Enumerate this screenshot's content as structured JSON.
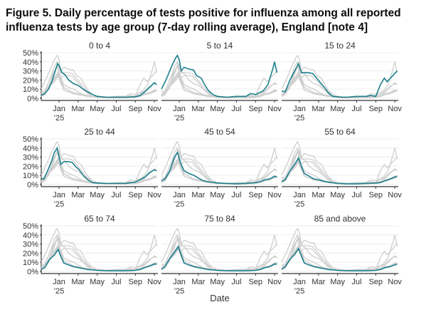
{
  "chart_data": {
    "type": "line",
    "title": "Figure 5. Daily percentage of tests positive for influenza among all reported influenza tests by age group (7-day rolling average), England [note 4]",
    "xlabel": "Date",
    "ylabel": "",
    "x_unit": "months since 1 Nov 2024",
    "xlim": [
      0.13,
      12.37
    ],
    "ylim": [
      -2.5,
      50
    ],
    "y_ticks": [
      0,
      10,
      20,
      30,
      40,
      50
    ],
    "y_tick_labels": [
      "0%",
      "10%",
      "20%",
      "30%",
      "40%",
      "50%"
    ],
    "x_ticks": [
      2,
      4,
      6,
      8,
      10,
      12
    ],
    "x_tick_labels": [
      "Jan",
      "Mar",
      "May",
      "Jul",
      "Sep",
      "Nov"
    ],
    "x_year_label": "'25",
    "grid": true,
    "colors": {
      "highlight": "#1b7f8c",
      "other": "#cfcfcf",
      "grid": "#ececec"
    },
    "series": [
      {
        "name": "0 to 4",
        "points": [
          [
            0.13,
            3
          ],
          [
            0.5,
            5
          ],
          [
            0.9,
            10
          ],
          [
            1.3,
            20
          ],
          [
            1.6,
            30
          ],
          [
            1.85,
            38
          ],
          [
            2.0,
            36
          ],
          [
            2.3,
            28
          ],
          [
            2.6,
            26
          ],
          [
            3.0,
            20
          ],
          [
            3.5,
            16
          ],
          [
            4.0,
            14
          ],
          [
            4.5,
            10
          ],
          [
            5.0,
            7
          ],
          [
            5.5,
            4
          ],
          [
            6.0,
            2
          ],
          [
            7,
            1
          ],
          [
            8,
            1
          ],
          [
            9,
            1
          ],
          [
            10,
            1.5
          ],
          [
            10.5,
            3
          ],
          [
            11,
            7
          ],
          [
            11.5,
            12
          ],
          [
            12.0,
            17
          ],
          [
            12.25,
            15
          ]
        ]
      },
      {
        "name": "5 to 14",
        "points": [
          [
            0.13,
            10
          ],
          [
            0.6,
            20
          ],
          [
            1.2,
            35
          ],
          [
            1.6,
            44
          ],
          [
            1.8,
            47
          ],
          [
            2.0,
            42
          ],
          [
            2.2,
            30
          ],
          [
            2.5,
            34
          ],
          [
            3.0,
            32
          ],
          [
            3.5,
            31
          ],
          [
            3.8,
            25
          ],
          [
            4.3,
            22
          ],
          [
            4.6,
            16
          ],
          [
            5.0,
            9
          ],
          [
            5.5,
            4
          ],
          [
            6,
            2
          ],
          [
            7,
            1
          ],
          [
            8,
            2
          ],
          [
            9,
            2
          ],
          [
            9.5,
            5
          ],
          [
            10,
            4
          ],
          [
            10.8,
            8
          ],
          [
            11.3,
            15
          ],
          [
            11.8,
            32
          ],
          [
            12.0,
            40
          ],
          [
            12.25,
            28
          ]
        ]
      },
      {
        "name": "15 to 24",
        "points": [
          [
            0.13,
            8
          ],
          [
            0.5,
            7
          ],
          [
            1.0,
            20
          ],
          [
            1.5,
            30
          ],
          [
            1.9,
            38
          ],
          [
            2.2,
            28
          ],
          [
            2.6,
            28
          ],
          [
            3.0,
            28
          ],
          [
            3.4,
            27
          ],
          [
            3.8,
            22
          ],
          [
            4.2,
            17
          ],
          [
            4.6,
            12
          ],
          [
            5.1,
            5
          ],
          [
            5.5,
            2
          ],
          [
            6.5,
            1
          ],
          [
            7,
            1
          ],
          [
            8,
            2
          ],
          [
            9,
            2
          ],
          [
            9.5,
            3
          ],
          [
            10,
            2
          ],
          [
            10.5,
            15
          ],
          [
            10.9,
            22
          ],
          [
            11.2,
            18
          ],
          [
            11.8,
            25
          ],
          [
            12.25,
            30
          ]
        ]
      },
      {
        "name": "25 to 44",
        "points": [
          [
            0.13,
            6
          ],
          [
            0.4,
            6
          ],
          [
            0.8,
            15
          ],
          [
            1.2,
            25
          ],
          [
            1.5,
            35
          ],
          [
            1.8,
            40
          ],
          [
            2.0,
            30
          ],
          [
            2.2,
            22
          ],
          [
            2.5,
            25
          ],
          [
            3.0,
            25
          ],
          [
            3.4,
            24
          ],
          [
            3.7,
            20
          ],
          [
            4.1,
            16
          ],
          [
            4.6,
            9
          ],
          [
            5.0,
            5
          ],
          [
            5.5,
            2
          ],
          [
            6,
            1.5
          ],
          [
            7,
            1
          ],
          [
            8,
            1
          ],
          [
            9,
            1
          ],
          [
            10,
            2.5
          ],
          [
            10.5,
            5
          ],
          [
            11,
            8
          ],
          [
            11.5,
            13
          ],
          [
            12,
            16
          ],
          [
            12.25,
            15
          ]
        ]
      },
      {
        "name": "45 to 54",
        "points": [
          [
            0.13,
            4
          ],
          [
            0.5,
            6
          ],
          [
            1.0,
            15
          ],
          [
            1.5,
            30
          ],
          [
            1.8,
            35
          ],
          [
            2.2,
            22
          ],
          [
            2.5,
            15
          ],
          [
            3.0,
            12
          ],
          [
            3.5,
            10
          ],
          [
            4.0,
            7
          ],
          [
            4.5,
            4
          ],
          [
            5.0,
            3
          ],
          [
            6,
            1.5
          ],
          [
            7,
            1
          ],
          [
            8,
            0.5
          ],
          [
            9,
            1
          ],
          [
            10,
            2
          ],
          [
            10.5,
            3
          ],
          [
            11,
            5
          ],
          [
            11.5,
            6
          ],
          [
            12,
            9
          ],
          [
            12.25,
            8
          ]
        ]
      },
      {
        "name": "55 to 64",
        "points": [
          [
            0.13,
            3
          ],
          [
            0.5,
            5
          ],
          [
            1.0,
            15
          ],
          [
            1.5,
            22
          ],
          [
            1.9,
            29
          ],
          [
            2.2,
            20
          ],
          [
            2.5,
            12
          ],
          [
            3.0,
            9
          ],
          [
            3.5,
            6
          ],
          [
            4.0,
            5
          ],
          [
            4.5,
            3.5
          ],
          [
            5.0,
            2.5
          ],
          [
            6,
            1
          ],
          [
            7,
            0.5
          ],
          [
            8,
            0.5
          ],
          [
            9,
            1
          ],
          [
            10,
            1.5
          ],
          [
            10.5,
            2
          ],
          [
            11,
            4
          ],
          [
            11.5,
            6
          ],
          [
            12,
            8
          ],
          [
            12.25,
            9
          ]
        ]
      },
      {
        "name": "65 to 74",
        "points": [
          [
            0.13,
            2
          ],
          [
            0.5,
            4
          ],
          [
            1.0,
            13
          ],
          [
            1.5,
            18
          ],
          [
            1.9,
            24
          ],
          [
            2.2,
            16
          ],
          [
            2.5,
            9
          ],
          [
            3.0,
            7
          ],
          [
            3.5,
            5
          ],
          [
            4.0,
            4
          ],
          [
            4.5,
            3
          ],
          [
            5.0,
            2
          ],
          [
            6,
            1
          ],
          [
            7,
            0.5
          ],
          [
            8,
            0.5
          ],
          [
            9,
            0.5
          ],
          [
            10,
            1
          ],
          [
            10.5,
            2
          ],
          [
            11,
            4
          ],
          [
            11.5,
            6
          ],
          [
            12,
            8
          ],
          [
            12.25,
            8
          ]
        ]
      },
      {
        "name": "75 to 84",
        "points": [
          [
            0.13,
            2
          ],
          [
            0.5,
            5
          ],
          [
            1.0,
            14
          ],
          [
            1.5,
            21
          ],
          [
            1.9,
            27
          ],
          [
            2.2,
            18
          ],
          [
            2.5,
            9
          ],
          [
            3.0,
            7
          ],
          [
            3.5,
            5
          ],
          [
            4.0,
            4
          ],
          [
            4.5,
            3
          ],
          [
            5.0,
            2
          ],
          [
            6,
            1
          ],
          [
            7,
            0.5
          ],
          [
            8,
            0.5
          ],
          [
            9,
            0.5
          ],
          [
            10,
            1
          ],
          [
            10.5,
            2
          ],
          [
            11,
            4
          ],
          [
            11.5,
            5
          ],
          [
            12,
            8
          ],
          [
            12.25,
            8
          ]
        ]
      },
      {
        "name": "85 and above",
        "points": [
          [
            0.13,
            2
          ],
          [
            0.5,
            5
          ],
          [
            1.0,
            13
          ],
          [
            1.5,
            19
          ],
          [
            1.9,
            25
          ],
          [
            2.2,
            17
          ],
          [
            2.5,
            9
          ],
          [
            3.0,
            7
          ],
          [
            3.5,
            5
          ],
          [
            4.0,
            4
          ],
          [
            4.5,
            3
          ],
          [
            5.0,
            2
          ],
          [
            6,
            1
          ],
          [
            7,
            0.5
          ],
          [
            8,
            0.5
          ],
          [
            9,
            0.5
          ],
          [
            10,
            1
          ],
          [
            10.5,
            2
          ],
          [
            11,
            4
          ],
          [
            11.5,
            5
          ],
          [
            12,
            7
          ],
          [
            12.25,
            8
          ]
        ]
      }
    ]
  }
}
